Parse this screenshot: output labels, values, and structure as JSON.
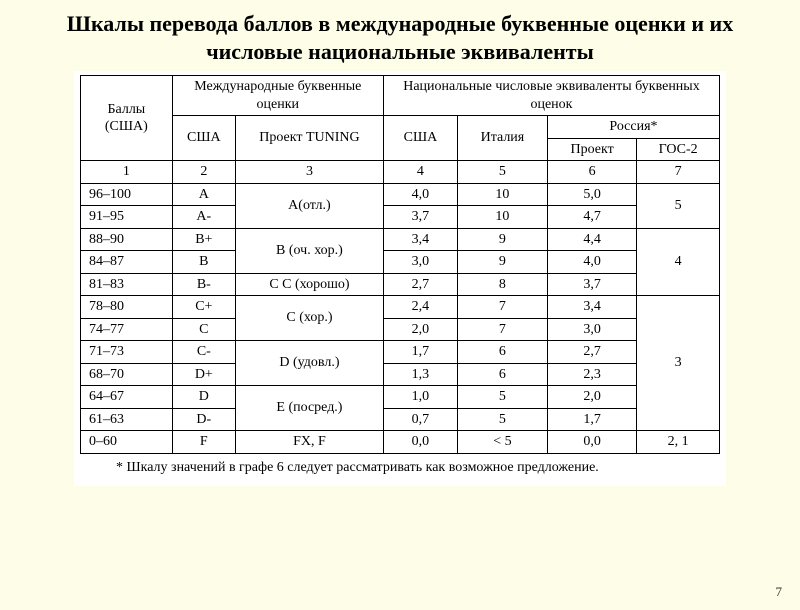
{
  "title": "Шкалы перевода баллов в международные буквенные оценки и их числовые национальные эквиваленты",
  "headers": {
    "scores": "Баллы (США)",
    "intl_letter": "Международные буквенные оценки",
    "national_num": "Национальные числовые эквиваленты буквенных оценок",
    "usa": "США",
    "tuning": "Проект TUNING",
    "usa_num": "США",
    "italy": "Италия",
    "russia": "Россия*",
    "project": "Проект",
    "gos2": "ГОС-2",
    "col1": "1",
    "col2": "2",
    "col3": "3",
    "col4": "4",
    "col5": "5",
    "col6": "6",
    "col7": "7"
  },
  "rows": {
    "r1": {
      "score": "96–100",
      "usa": "A",
      "tuning": "A(отл.)",
      "usa_num": "4,0",
      "italy": "10",
      "project": "5,0",
      "gos2": "5"
    },
    "r2": {
      "score": "91–95",
      "usa": "A-",
      "usa_num": "3,7",
      "italy": "10",
      "project": "4,7"
    },
    "r3": {
      "score": "88–90",
      "usa": "B+",
      "tuning": "B (оч. хор.)",
      "usa_num": "3,4",
      "italy": "9",
      "project": "4,4",
      "gos2": "4"
    },
    "r4": {
      "score": "84–87",
      "usa": "B",
      "usa_num": "3,0",
      "italy": "9",
      "project": "4,0"
    },
    "r5": {
      "score": "81–83",
      "usa": "B-",
      "tuning": "C C (хорошо)",
      "usa_num": "2,7",
      "italy": "8",
      "project": "3,7"
    },
    "r6": {
      "score": "78–80",
      "usa": "C+",
      "tuning": "C (хор.)",
      "usa_num": "2,4",
      "italy": "7",
      "project": "3,4"
    },
    "r7": {
      "score": "74–77",
      "usa": "C",
      "usa_num": "2,0",
      "italy": "7",
      "project": "3,0"
    },
    "r8": {
      "score": "71–73",
      "usa": "C-",
      "tuning": "D (удовл.)",
      "usa_num": "1,7",
      "italy": "6",
      "project": "2,7",
      "gos2": "3"
    },
    "r9": {
      "score": "68–70",
      "usa": "D+",
      "usa_num": "1,3",
      "italy": "6",
      "project": "2,3"
    },
    "r10": {
      "score": "64–67",
      "usa": "D",
      "tuning": "E (посред.)",
      "usa_num": "1,0",
      "italy": "5",
      "project": "2,0"
    },
    "r11": {
      "score": "61–63",
      "usa": "D-",
      "usa_num": "0,7",
      "italy": "5",
      "project": "1,7"
    },
    "r12": {
      "score": "0–60",
      "usa": "F",
      "tuning": "FX, F",
      "usa_num": "0,0",
      "italy": "< 5",
      "project": "0,0",
      "gos2": "2, 1"
    }
  },
  "footnote": "* Шкалу значений в графе 6 следует рассматривать как возможное предложение.",
  "page_number": "7"
}
